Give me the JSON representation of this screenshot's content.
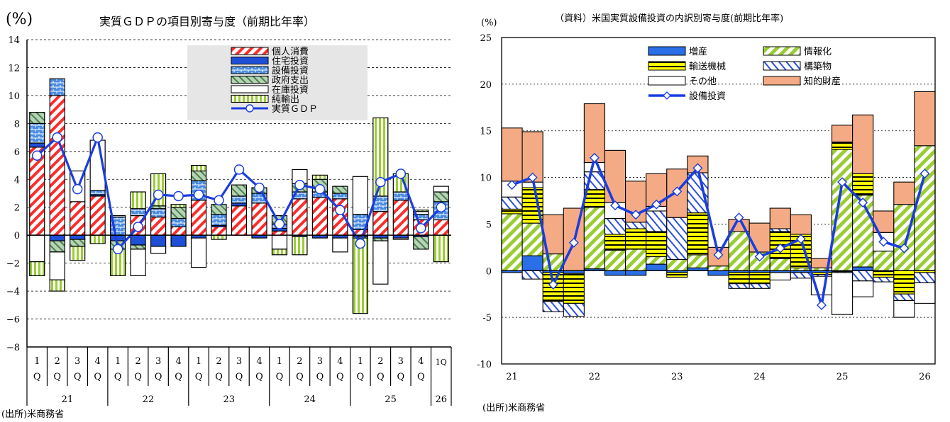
{
  "colors": {
    "consumption": "#ff2b2b",
    "residential": "#1f4fd6",
    "equipment": "#4a8be0",
    "government": "#7fae7f",
    "inventory": "#ffffff",
    "net_exports": "#9acd32",
    "gdp_line": "#1a3de0",
    "structures": "#2b4fe0",
    "transport": "#ffff00",
    "info": "#9acd32",
    "ip": "#f4ab85",
    "other": "#ffffff",
    "increase": "#2a6fe8",
    "legend_bg": "#e6e6e6"
  },
  "chart_data": [
    {
      "type": "bar",
      "title": "実質ＧＤＰの項目別寄与度（前期比年率）",
      "ylabel": "(%)",
      "ylim": [
        -8,
        14
      ],
      "yticks": [
        "14",
        "12",
        "10",
        "8",
        "6",
        "4",
        "2",
        "0",
        "−2",
        "−4",
        "−6",
        "−8"
      ],
      "grid": true,
      "legend_position": "top-center",
      "categories": [
        "1",
        "2",
        "3",
        "4",
        "1",
        "2",
        "3",
        "4",
        "1",
        "2",
        "3",
        "4",
        "1",
        "2",
        "3",
        "4",
        "1",
        "2",
        "3",
        "4",
        "1Q"
      ],
      "quarter_label": "Q",
      "years": [
        "21",
        "22",
        "23",
        "24",
        "25",
        "26"
      ],
      "series": [
        {
          "name": "個人消費",
          "key": "consumption",
          "values": [
            6.3,
            10.0,
            2.4,
            2.8,
            0.0,
            1.4,
            1.3,
            0.6,
            2.5,
            0.6,
            2.1,
            2.3,
            0.3,
            2.6,
            2.7,
            2.6,
            0.4,
            1.7,
            2.5,
            1.1,
            1.1
          ]
        },
        {
          "name": "住宅投資",
          "key": "residential",
          "values": [
            0.3,
            -0.4,
            -0.3,
            0.1,
            -0.4,
            -0.7,
            -0.8,
            -0.8,
            -0.2,
            0.1,
            0.2,
            -0.2,
            0.2,
            -0.1,
            -0.2,
            -0.2,
            -0.1,
            -0.2,
            -0.2,
            -0.1,
            0.0
          ]
        },
        {
          "name": "設備投資",
          "key": "equipment",
          "values": [
            1.4,
            1.2,
            0.0,
            0.3,
            1.3,
            0.5,
            0.6,
            0.6,
            1.4,
            0.8,
            0.5,
            0.7,
            0.3,
            0.5,
            0.4,
            0.4,
            1.1,
            1.1,
            0.6,
            0.4,
            1.3
          ]
        },
        {
          "name": "政府支出",
          "key": "government",
          "values": [
            0.8,
            -0.8,
            -0.5,
            0.0,
            -0.6,
            -0.3,
            0.2,
            0.8,
            0.7,
            0.7,
            0.8,
            0.4,
            0.6,
            0.6,
            0.9,
            0.5,
            -0.1,
            -0.2,
            0.0,
            -0.9,
            0.7
          ]
        },
        {
          "name": "在庫投資",
          "key": "inventory",
          "values": [
            -1.9,
            -2.0,
            2.2,
            3.6,
            0.1,
            -1.9,
            -0.5,
            0.0,
            -2.1,
            0.0,
            0.0,
            0.0,
            -1.0,
            1.0,
            0.0,
            -1.0,
            2.7,
            -3.1,
            -0.1,
            0.2,
            0.4
          ]
        },
        {
          "name": "純輸出",
          "key": "net_exports",
          "values": [
            -1.0,
            -0.8,
            -1.0,
            -0.6,
            -1.9,
            1.2,
            2.3,
            0.2,
            0.4,
            -0.3,
            0.0,
            0.0,
            -0.4,
            -1.3,
            0.3,
            0.0,
            -5.4,
            5.6,
            1.3,
            0.1,
            -1.9
          ]
        },
        {
          "name": "実質ＧＤＰ",
          "key": "gdp",
          "line": true,
          "values": [
            5.7,
            7.0,
            3.3,
            7.0,
            -1.0,
            0.6,
            2.9,
            2.8,
            2.9,
            2.5,
            4.7,
            3.4,
            0.8,
            3.6,
            3.3,
            1.8,
            -0.6,
            3.8,
            4.4,
            0.5,
            2.0
          ]
        }
      ],
      "source": "(出所)米商務省"
    },
    {
      "type": "bar",
      "title": "（資料）米国実質設備投資の内訳別寄与度(前期比年率)",
      "ylabel": "(%)",
      "ylim": [
        -10,
        25
      ],
      "yticks": [
        "25",
        "20",
        "15",
        "10",
        "5",
        "0",
        "-5",
        "-10"
      ],
      "grid": true,
      "legend_position": "top-left",
      "categories": [
        "21Q1",
        "21Q2",
        "21Q3",
        "21Q4",
        "22Q1",
        "22Q2",
        "22Q3",
        "22Q4",
        "23Q1",
        "23Q2",
        "23Q3",
        "23Q4",
        "24Q1",
        "24Q2",
        "24Q3",
        "24Q4",
        "25Q1",
        "25Q2",
        "25Q3",
        "25Q4",
        "26Q1"
      ],
      "x_tick_labels": [
        "21",
        "22",
        "23",
        "24",
        "25",
        "26"
      ],
      "series": [
        {
          "name": "増産",
          "key": "increase",
          "values": [
            -0.2,
            1.6,
            -0.2,
            -0.3,
            0.2,
            -0.5,
            -0.5,
            0.7,
            -0.2,
            0.3,
            -0.5,
            -0.2,
            -0.2,
            -0.2,
            -0.2,
            -0.2,
            -0.1,
            0.4,
            -0.1,
            0.0,
            0.0
          ]
        },
        {
          "name": "情報化",
          "key": "info",
          "values": [
            6.1,
            3.5,
            1.8,
            0.0,
            6.6,
            2.2,
            2.3,
            0.8,
            1.2,
            1.4,
            0.5,
            4.2,
            2.0,
            1.3,
            0.3,
            0.3,
            13.0,
            7.7,
            2.1,
            7.1,
            13.4
          ]
        },
        {
          "name": "輸送機械",
          "key": "transport",
          "values": [
            0.5,
            3.8,
            -3.1,
            -3.2,
            1.9,
            1.7,
            2.2,
            2.7,
            -0.5,
            4.5,
            0.0,
            -1.2,
            -1.2,
            2.9,
            3.6,
            -0.2,
            0.8,
            2.3,
            -0.6,
            -2.5,
            -0.2
          ]
        },
        {
          "name": "構築物",
          "key": "structures",
          "values": [
            1.3,
            -0.9,
            -1.1,
            -1.4,
            1.9,
            1.7,
            0.7,
            2.2,
            4.5,
            4.3,
            0.0,
            -0.5,
            -0.5,
            0.3,
            -0.6,
            -0.2,
            -0.1,
            -1.1,
            -0.5,
            -0.7,
            -1.1
          ]
        },
        {
          "name": "その他",
          "key": "other",
          "values": [
            1.7,
            0.6,
            0.0,
            0.0,
            1.0,
            1.7,
            0.0,
            0.5,
            0.0,
            0.0,
            0.0,
            0.0,
            0.0,
            -0.8,
            0.0,
            -2.0,
            -4.5,
            -1.7,
            2.0,
            -1.8,
            -2.2
          ]
        },
        {
          "name": "知的財産",
          "key": "ip",
          "values": [
            5.7,
            5.4,
            4.2,
            6.7,
            6.3,
            5.6,
            4.4,
            3.5,
            5.2,
            1.8,
            2.0,
            1.3,
            3.1,
            2.2,
            2.1,
            1.0,
            1.8,
            6.3,
            2.3,
            2.4,
            5.8
          ]
        },
        {
          "name": "設備投資",
          "key": "capex",
          "line": true,
          "values": [
            9.2,
            10.0,
            -1.5,
            3.0,
            12.1,
            7.0,
            6.0,
            7.1,
            8.5,
            11.0,
            1.7,
            5.7,
            1.5,
            2.4,
            3.4,
            -3.7,
            9.5,
            7.3,
            3.1,
            2.4,
            10.4
          ]
        }
      ],
      "source": "(出所)米商務省"
    }
  ]
}
